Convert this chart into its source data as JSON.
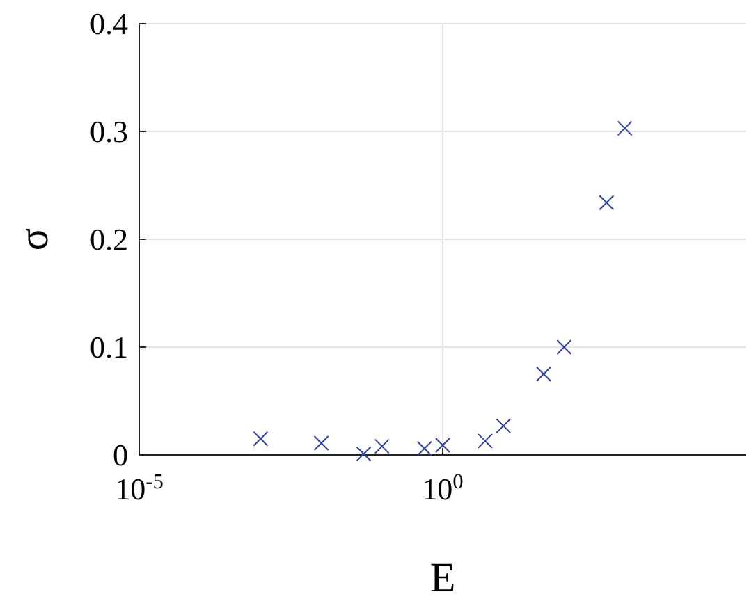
{
  "chart_data": {
    "type": "scatter",
    "xlabel": "E",
    "ylabel": "σ",
    "x": [
      0.001,
      0.01,
      0.05,
      0.1,
      0.5,
      1,
      5,
      10,
      46,
      100,
      500,
      1000
    ],
    "values": [
      0.015,
      0.011,
      0.001,
      0.008,
      0.006,
      0.009,
      0.013,
      0.027,
      0.075,
      0.1,
      0.234,
      0.303
    ],
    "color": "#2e3fa6",
    "marker": "cross",
    "log": "x",
    "xlim": [
      1e-05,
      100000
    ],
    "xticks": [
      {
        "value": 1e-05,
        "label": "10$^{-5}$"
      },
      {
        "value": 1,
        "label": "10$^{0}$"
      }
    ],
    "ylim": [
      0,
      0.4
    ],
    "yticks": [
      0,
      0.1,
      0.2,
      0.3,
      0.4
    ],
    "grid": true
  }
}
